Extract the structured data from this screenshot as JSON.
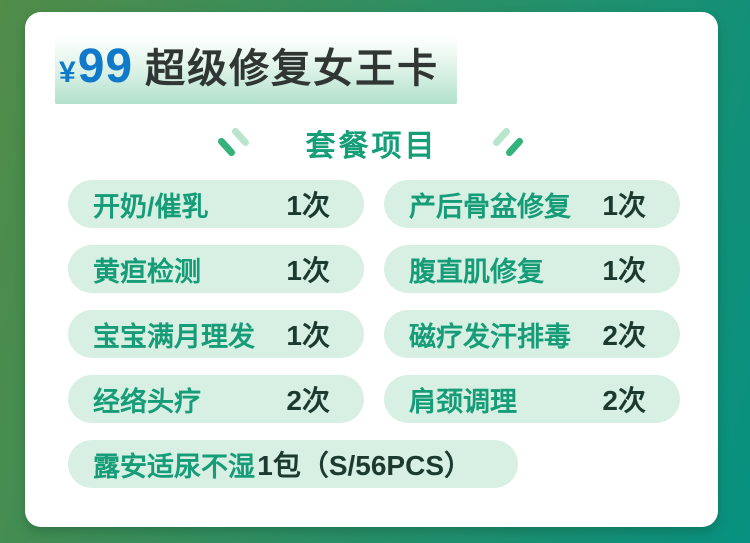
{
  "header": {
    "price_currency": "¥",
    "price_value": "99",
    "title": "超级修复女王卡"
  },
  "section": {
    "title": "套餐项目"
  },
  "items": [
    {
      "label": "开奶/催乳",
      "count": "1次"
    },
    {
      "label": "产后骨盆修复",
      "count": "1次"
    },
    {
      "label": "黄疸检测",
      "count": "1次"
    },
    {
      "label": "腹直肌修复",
      "count": "1次"
    },
    {
      "label": "宝宝满月理发",
      "count": "1次"
    },
    {
      "label": "磁疗发汗排毒",
      "count": "2次"
    },
    {
      "label": "经络头疗",
      "count": "2次"
    },
    {
      "label": "肩颈调理",
      "count": "2次"
    },
    {
      "label": "露安适尿不湿",
      "count": "1包（S/56PCS）",
      "wide": true
    }
  ],
  "colors": {
    "background_left": "#518c48",
    "background_right": "#079180",
    "card": "#ffffff",
    "price_blue": "#1079c9",
    "title_dark": "#303633",
    "section_green": "#169e79",
    "pill_background": "#d8f0e4",
    "pill_label_green": "#169d78",
    "pill_count_dark": "#1c3a30",
    "deco_light": "#b9e4cd",
    "deco_dark": "#35b27c",
    "title_highlight": "#b2e1cd"
  }
}
